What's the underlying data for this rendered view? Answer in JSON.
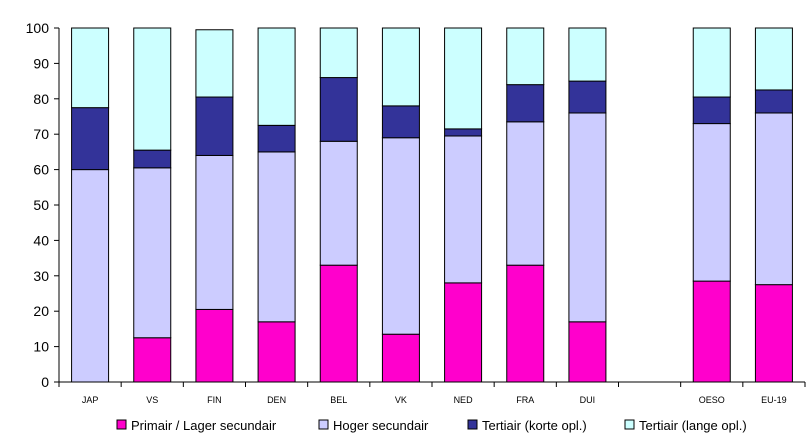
{
  "chart_data": {
    "type": "bar",
    "stacked": true,
    "categories": [
      "JAP",
      "VS",
      "FIN",
      "DEN",
      "BEL",
      "VK",
      "NED",
      "FRA",
      "DUI",
      "",
      "OESO",
      "EU-19"
    ],
    "series": [
      {
        "name": "Primair / Lager secundair",
        "color": "#ff00cc",
        "values": [
          0,
          12.5,
          20.5,
          17,
          33,
          13.5,
          28,
          33,
          17,
          null,
          28.5,
          27.5
        ]
      },
      {
        "name": "Hoger secundair",
        "color": "#ccccff",
        "values": [
          60,
          48,
          43.5,
          48,
          35,
          55.5,
          41.5,
          40.5,
          59,
          null,
          44.5,
          48.5
        ]
      },
      {
        "name": "Tertiair (korte opl.)",
        "color": "#333399",
        "values": [
          17.5,
          5,
          16.5,
          7.5,
          18,
          9,
          2,
          10.5,
          9,
          null,
          7.5,
          6.5
        ]
      },
      {
        "name": "Tertiair (lange opl.)",
        "color": "#ccffff",
        "values": [
          22.5,
          34.5,
          19,
          27.5,
          14,
          22,
          28.5,
          16,
          15,
          null,
          19.5,
          17.5
        ]
      }
    ],
    "ylim": [
      0,
      100
    ],
    "yticks": [
      "0",
      "10",
      "20",
      "30",
      "40",
      "50",
      "60",
      "70",
      "80",
      "90",
      "100"
    ],
    "xlabel": "",
    "ylabel": "",
    "grid": false,
    "legend": "bottom"
  }
}
